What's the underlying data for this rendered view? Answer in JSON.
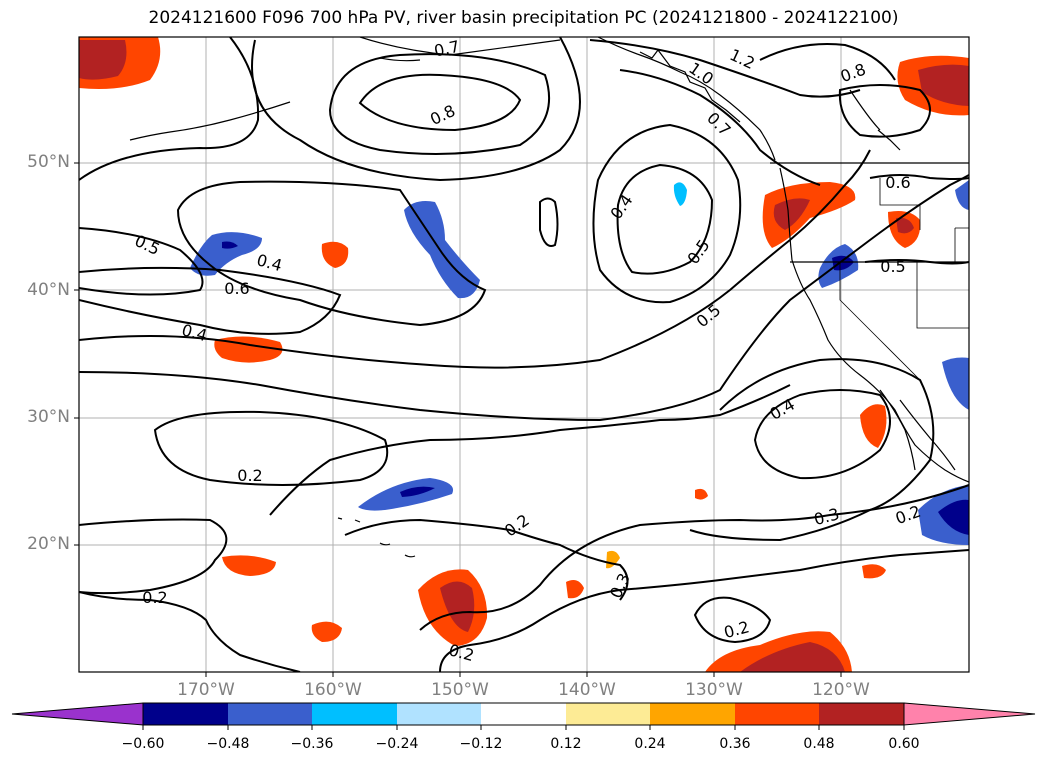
{
  "title": "2024121600 F096 700 hPa PV, river basin precipitation PC (2024121800 - 2024122100)",
  "lat_labels": [
    "50°N",
    "40°N",
    "30°N",
    "20°N"
  ],
  "lon_labels": [
    "170°W",
    "160°W",
    "150°W",
    "140°W",
    "130°W",
    "120°W"
  ],
  "contour_labels": [
    "0.7",
    "1.2",
    "1.0",
    "0.8",
    "0.8",
    "0.7",
    "0.6",
    "0.5",
    "0.4",
    "0.6",
    "0.4",
    "0.4",
    "0.5",
    "0.5",
    "0.5",
    "0.4",
    "0.2",
    "0.2",
    "0.3",
    "0.2",
    "0.2",
    "0.3",
    "0.2",
    "0.2"
  ],
  "colorbar": {
    "ticks": [
      "−0.60",
      "−0.48",
      "−0.36",
      "−0.24",
      "−0.12",
      "0.12",
      "0.24",
      "0.36",
      "0.48",
      "0.60"
    ],
    "colors": [
      "#9a32cd",
      "#00008b",
      "#3a5fcd",
      "#00bfff",
      "#b0e2ff",
      "#ffffff",
      "#fdeb95",
      "#ffa500",
      "#ff4500",
      "#b22222",
      "#ff82ab"
    ]
  }
}
